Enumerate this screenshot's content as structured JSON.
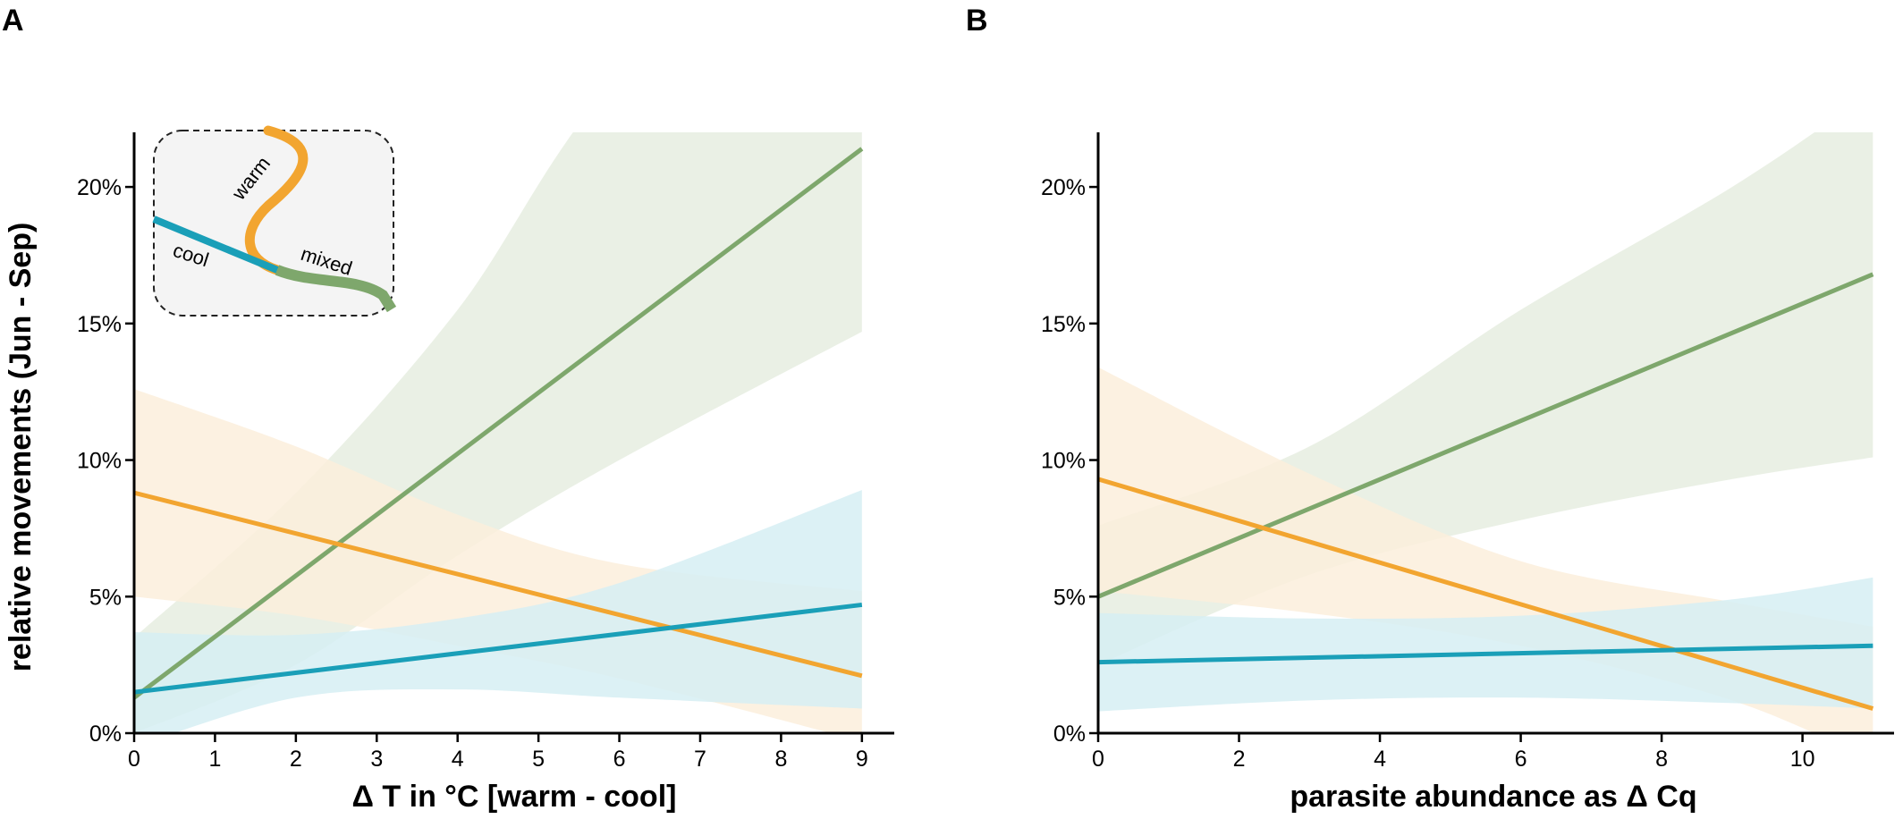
{
  "figure": {
    "ylabel": "relative movements (Jun - Sep)",
    "colors": {
      "cool": "#1a9fb8",
      "warm": "#f2a530",
      "mixed": "#7ea76c",
      "cool_band": "#d6eef3",
      "warm_band": "#fcefdc",
      "mixed_band": "#e6ede0"
    }
  },
  "chart_data": [
    {
      "panel": "A",
      "type": "line",
      "xlabel": "Δ T in °C [warm - cool]",
      "ylabel": "relative movements (Jun - Sep)",
      "xlim": [
        0,
        9.4
      ],
      "ylim": [
        0,
        22
      ],
      "xticks": [
        0,
        1,
        2,
        3,
        4,
        5,
        6,
        7,
        8,
        9
      ],
      "yticks": [
        0,
        5,
        10,
        15,
        20
      ],
      "ytick_labels": [
        "0%",
        "5%",
        "10%",
        "15%",
        "20%"
      ],
      "grid": false,
      "series": [
        {
          "key": "mixed",
          "x": [
            0,
            9
          ],
          "y": [
            1.3,
            21.4
          ],
          "ci_lower": [
            [
              0,
              0
            ],
            [
              2,
              2.5
            ],
            [
              4,
              6.5
            ],
            [
              6,
              10
            ],
            [
              9,
              14.7
            ]
          ],
          "ci_upper": [
            [
              0,
              3.5
            ],
            [
              2,
              8.8
            ],
            [
              4,
              15.5
            ],
            [
              6,
              24
            ],
            [
              9,
              30
            ]
          ]
        },
        {
          "key": "warm",
          "x": [
            0,
            9
          ],
          "y": [
            8.8,
            2.1
          ],
          "ci_lower": [
            [
              0,
              5
            ],
            [
              2,
              4.3
            ],
            [
              4,
              3.2
            ],
            [
              6,
              2
            ],
            [
              9,
              -0.3
            ]
          ],
          "ci_upper": [
            [
              0,
              12.6
            ],
            [
              2,
              10.5
            ],
            [
              4,
              8
            ],
            [
              6,
              6.2
            ],
            [
              9,
              5.2
            ]
          ]
        },
        {
          "key": "cool",
          "x": [
            0,
            9
          ],
          "y": [
            1.5,
            4.7
          ],
          "ci_lower": [
            [
              0,
              -0.5
            ],
            [
              2,
              1.3
            ],
            [
              4,
              1.6
            ],
            [
              6,
              1.3
            ],
            [
              9,
              0.9
            ]
          ],
          "ci_upper": [
            [
              0,
              3.7
            ],
            [
              2,
              3.6
            ],
            [
              4,
              4.2
            ],
            [
              6,
              5.5
            ],
            [
              9,
              8.9
            ]
          ]
        }
      ],
      "inset": {
        "labels": {
          "warm": "warm",
          "cool": "cool",
          "mixed": "mixed"
        }
      }
    },
    {
      "panel": "B",
      "type": "line",
      "xlabel": "parasite abundance as Δ Cq",
      "xlim": [
        0,
        11.3
      ],
      "ylim": [
        0,
        22
      ],
      "xticks": [
        0,
        2,
        4,
        6,
        8,
        10
      ],
      "yticks": [
        0,
        5,
        10,
        15,
        20
      ],
      "ytick_labels": [
        "0%",
        "5%",
        "10%",
        "15%",
        "20%"
      ],
      "grid": false,
      "series": [
        {
          "key": "mixed",
          "x": [
            0,
            11
          ],
          "y": [
            5,
            16.8
          ],
          "ci_lower": [
            [
              0,
              2.5
            ],
            [
              3,
              5.8
            ],
            [
              6,
              7.8
            ],
            [
              9,
              9.3
            ],
            [
              11,
              10.1
            ]
          ],
          "ci_upper": [
            [
              0,
              7.6
            ],
            [
              3,
              10.5
            ],
            [
              6,
              15.5
            ],
            [
              9,
              20
            ],
            [
              11,
              23.5
            ]
          ]
        },
        {
          "key": "warm",
          "x": [
            0,
            11
          ],
          "y": [
            9.3,
            0.9
          ],
          "ci_lower": [
            [
              0,
              5.2
            ],
            [
              3,
              4.4
            ],
            [
              6,
              3.2
            ],
            [
              9,
              1.2
            ],
            [
              11,
              -1
            ]
          ],
          "ci_upper": [
            [
              0,
              13.4
            ],
            [
              3,
              9.5
            ],
            [
              6,
              6.3
            ],
            [
              9,
              4.8
            ],
            [
              11,
              3.9
            ]
          ]
        },
        {
          "key": "cool",
          "x": [
            0,
            11
          ],
          "y": [
            2.6,
            3.2
          ],
          "ci_lower": [
            [
              0,
              0.8
            ],
            [
              3,
              1.2
            ],
            [
              6,
              1.3
            ],
            [
              9,
              1.1
            ],
            [
              11,
              0.9
            ]
          ],
          "ci_upper": [
            [
              0,
              4.4
            ],
            [
              3,
              4.2
            ],
            [
              6,
              4.3
            ],
            [
              9,
              4.9
            ],
            [
              11,
              5.7
            ]
          ]
        }
      ]
    }
  ]
}
